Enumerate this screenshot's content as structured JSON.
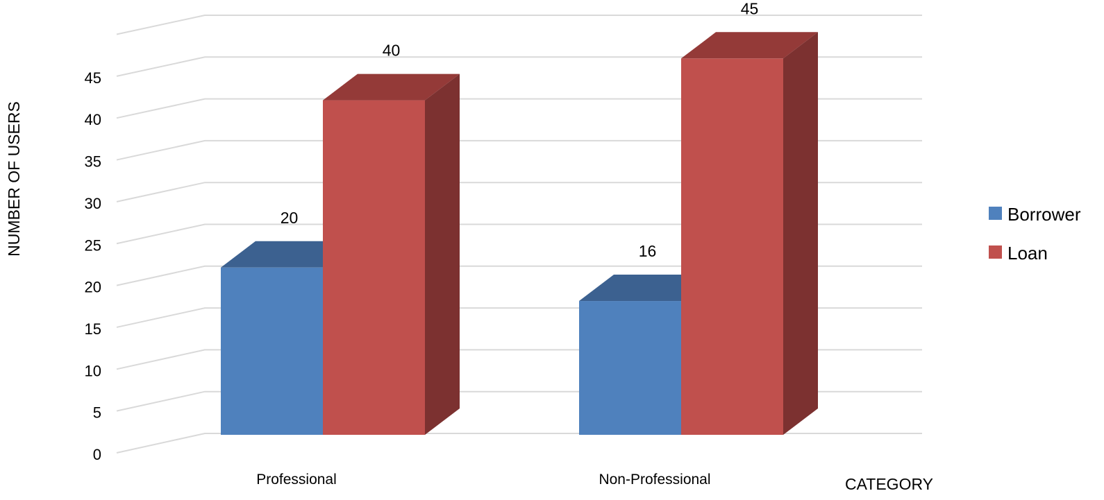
{
  "chart_data": {
    "type": "bar",
    "style": "3d-clustered-column",
    "categories": [
      "Professional",
      "Non-Professional"
    ],
    "series": [
      {
        "name": "Borrower",
        "values": [
          20,
          16
        ],
        "color": "#4f81bd",
        "top_color": "#3c6190",
        "side_color": "#33527a"
      },
      {
        "name": "Loan",
        "values": [
          40,
          45
        ],
        "color": "#c0504d",
        "top_color": "#943a38",
        "side_color": "#7c3130"
      }
    ],
    "title": "",
    "xlabel": "CATEGORY",
    "ylabel": "NUMBER  OF USERS",
    "ylim": [
      0,
      50
    ],
    "yticks": [
      0,
      5,
      10,
      15,
      20,
      25,
      30,
      35,
      40,
      45
    ],
    "grid": true,
    "gridline_color": "#d9d9d9",
    "data_labels": true,
    "legend_position": "right"
  }
}
